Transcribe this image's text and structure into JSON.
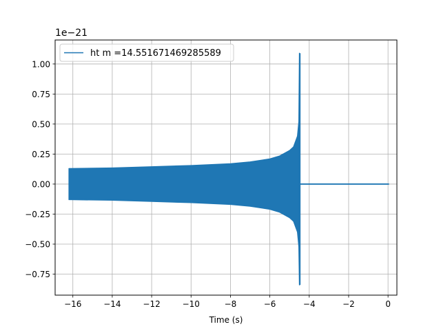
{
  "chart_data": {
    "type": "line",
    "xlabel": "Time (s)",
    "ylabel": "",
    "offset_label": "1e−21",
    "xlim": [
      -16.9,
      0.45
    ],
    "ylim": [
      -0.925,
      1.2
    ],
    "xticks": [
      -16,
      -14,
      -12,
      -10,
      -8,
      -6,
      -4,
      -2,
      0
    ],
    "xtick_labels": [
      "−16",
      "−14",
      "−12",
      "−10",
      "−8",
      "−6",
      "−4",
      "−2",
      "0"
    ],
    "yticks": [
      -0.75,
      -0.5,
      -0.25,
      0.0,
      0.25,
      0.5,
      0.75,
      1.0
    ],
    "ytick_labels": [
      "−0.75",
      "−0.50",
      "−0.25",
      "0.00",
      "0.25",
      "0.50",
      "0.75",
      "1.00"
    ],
    "grid": true,
    "legend_position": "top-left",
    "series": [
      {
        "name": "ht m =14.551671469285589",
        "color": "#1f77b4",
        "signal_start": -16.2,
        "merger_time": -4.48,
        "signal_end": 0.05,
        "upper_envelope": {
          "x": [
            -16.2,
            -14,
            -12,
            -10,
            -8,
            -7,
            -6,
            -5.5,
            -5,
            -4.8,
            -4.6,
            -4.53,
            -4.5
          ],
          "y": [
            0.13,
            0.135,
            0.145,
            0.155,
            0.17,
            0.185,
            0.21,
            0.235,
            0.28,
            0.31,
            0.4,
            0.52,
            1.09
          ]
        },
        "lower_envelope": {
          "x": [
            -16.2,
            -14,
            -12,
            -10,
            -8,
            -7,
            -6,
            -5.5,
            -5,
            -4.8,
            -4.6,
            -4.53,
            -4.5
          ],
          "y": [
            -0.13,
            -0.135,
            -0.145,
            -0.155,
            -0.17,
            -0.185,
            -0.21,
            -0.235,
            -0.28,
            -0.31,
            -0.4,
            -0.52,
            -0.84
          ]
        }
      }
    ]
  }
}
